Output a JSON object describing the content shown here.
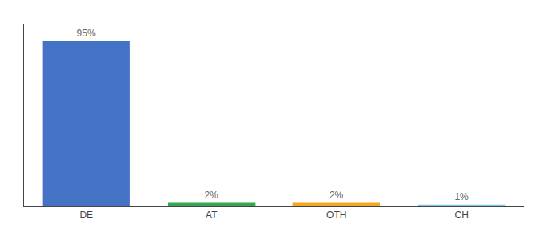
{
  "chart_data": {
    "type": "bar",
    "categories": [
      "DE",
      "AT",
      "OTH",
      "CH"
    ],
    "values": [
      95,
      2,
      2,
      1
    ],
    "value_labels": [
      "95%",
      "2%",
      "2%",
      "1%"
    ],
    "colors": [
      "#4472c4",
      "#33a853",
      "#f5a623",
      "#7ec8e3"
    ],
    "ylim": [
      0,
      105
    ],
    "data_labels": true,
    "tick_labels": "x",
    "grid": false
  }
}
